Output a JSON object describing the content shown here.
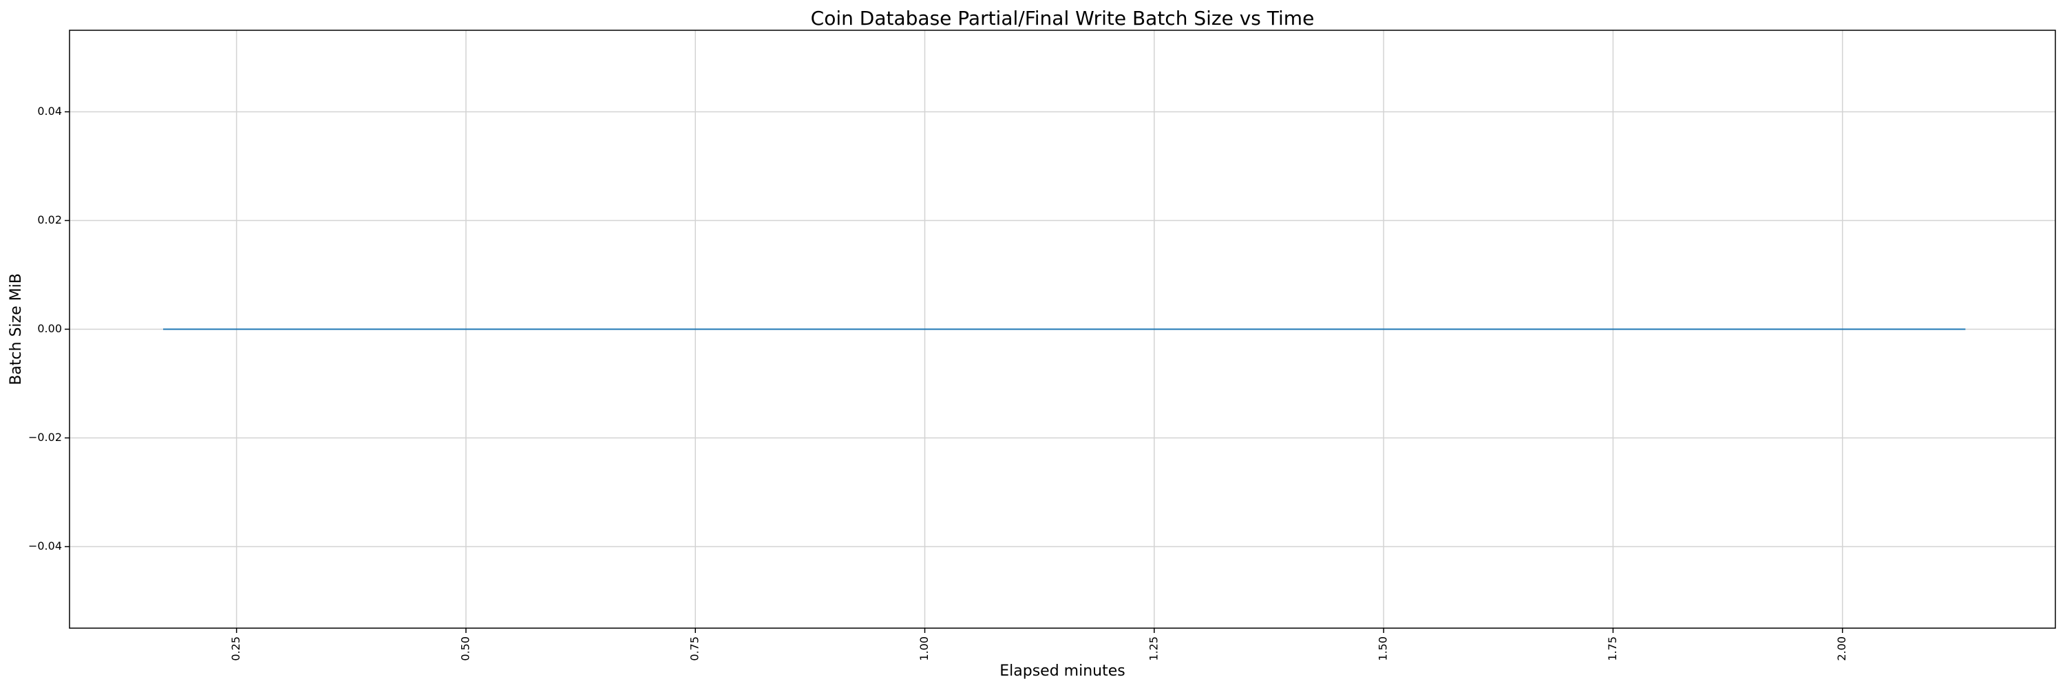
{
  "chart_data": {
    "type": "line",
    "title": "Coin Database Partial/Final Write Batch Size vs Time",
    "xlabel": "Elapsed minutes",
    "ylabel": "Batch Size MiB",
    "xlim": [
      0.068,
      2.232
    ],
    "ylim": [
      -0.055,
      0.055
    ],
    "x_ticks": [
      0.25,
      0.5,
      0.75,
      1.0,
      1.25,
      1.5,
      1.75,
      2.0
    ],
    "x_tick_labels": [
      "0.25",
      "0.50",
      "0.75",
      "1.00",
      "1.25",
      "1.50",
      "1.75",
      "2.00"
    ],
    "y_ticks": [
      -0.04,
      -0.02,
      0.0,
      0.02,
      0.04
    ],
    "y_tick_labels": [
      "−0.04",
      "−0.02",
      "0.00",
      "0.02",
      "0.04"
    ],
    "x_tick_rotation": "vertical",
    "grid": true,
    "series": [
      {
        "x": [
          0.17,
          2.134
        ],
        "y": [
          0.0,
          0.0
        ]
      }
    ],
    "colors": {
      "line": "#1f77b4",
      "grid": "#d3d3d3",
      "axes": "#000000"
    }
  }
}
